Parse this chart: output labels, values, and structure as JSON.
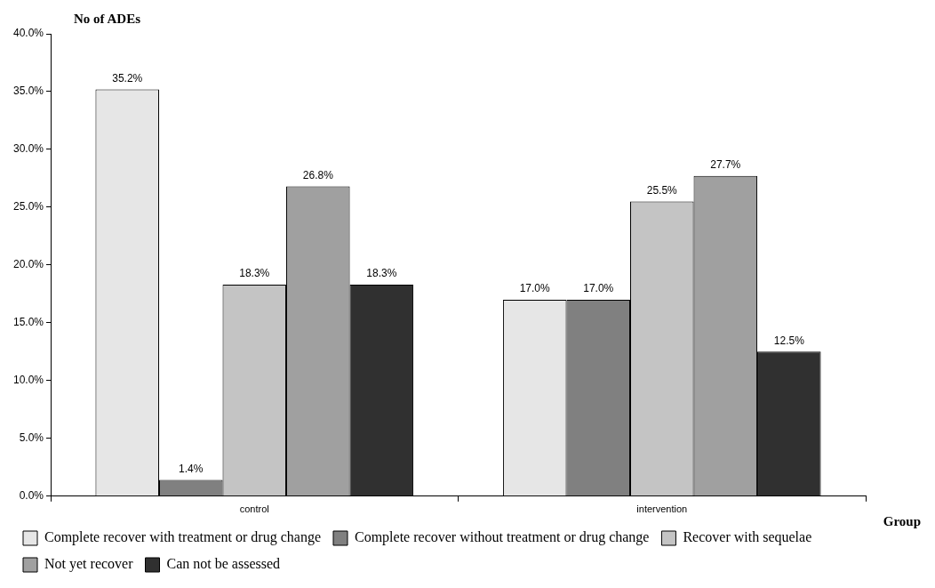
{
  "chart_data": {
    "type": "bar",
    "ylabel": "No of ADEs",
    "xlabel": "Group",
    "categories": [
      "control",
      "intervention"
    ],
    "series": [
      {
        "name": "Complete recover with treatment or drug change",
        "color": "#e6e6e6",
        "values": [
          35.2,
          17.0
        ],
        "value_labels": [
          "35.2%",
          "17.0%"
        ]
      },
      {
        "name": "Complete recover without treatment or drug change",
        "color": "#808080",
        "values": [
          1.4,
          17.0
        ],
        "value_labels": [
          "1.4%",
          "17.0%"
        ]
      },
      {
        "name": "Recover with sequelae",
        "color": "#c4c4c4",
        "values": [
          18.3,
          25.5
        ],
        "value_labels": [
          "18.3%",
          "25.5%"
        ]
      },
      {
        "name": "Not yet recover",
        "color": "#a0a0a0",
        "values": [
          26.8,
          27.7
        ],
        "value_labels": [
          "26.8%",
          "27.7%"
        ]
      },
      {
        "name": "Can not be assessed",
        "color": "#303030",
        "values": [
          18.3,
          12.5
        ],
        "value_labels": [
          "18.3%",
          "12.5%"
        ]
      }
    ],
    "ylim": [
      0,
      40
    ],
    "yticks": [
      {
        "value": 0,
        "label": "0.0%"
      },
      {
        "value": 5,
        "label": "5.0%"
      },
      {
        "value": 10,
        "label": "10.0%"
      },
      {
        "value": 15,
        "label": "15.0%"
      },
      {
        "value": 20,
        "label": "20.0%"
      },
      {
        "value": 25,
        "label": "25.0%"
      },
      {
        "value": 30,
        "label": "30.0%"
      },
      {
        "value": 35,
        "label": "35.0%"
      },
      {
        "value": 40,
        "label": "40.0%"
      }
    ],
    "grid": false,
    "legend": "bottom"
  }
}
